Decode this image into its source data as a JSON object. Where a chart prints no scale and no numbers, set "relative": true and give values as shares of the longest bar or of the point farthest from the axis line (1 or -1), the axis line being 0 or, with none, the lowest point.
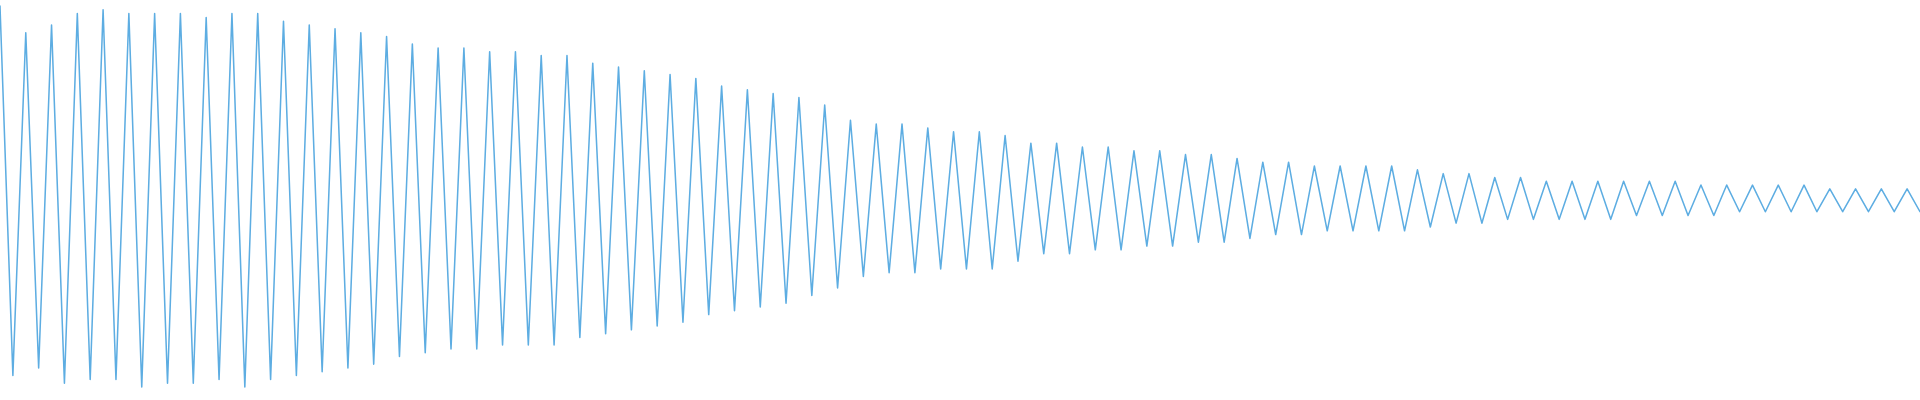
{
  "chart_data": {
    "type": "line",
    "relative": true,
    "color": "#5dade2",
    "categories": [
      null,
      null,
      null,
      null,
      null,
      null,
      null,
      null,
      null,
      null,
      null,
      null,
      null,
      null,
      null,
      null,
      null,
      null,
      null,
      null,
      null,
      null,
      null,
      null,
      null,
      null,
      null,
      null,
      null,
      null,
      null,
      null,
      null,
      null,
      null,
      null,
      null,
      null,
      null,
      null,
      null,
      null,
      null,
      null,
      null,
      null,
      null,
      null,
      null,
      null,
      null,
      null,
      null,
      null,
      null,
      null,
      null,
      null,
      null,
      null,
      null,
      null,
      null,
      null,
      null,
      null,
      null,
      null,
      null,
      null,
      null,
      null,
      null,
      null,
      null,
      null,
      null,
      null,
      null,
      null,
      null,
      null,
      null,
      null,
      null,
      null,
      null,
      null,
      null,
      null,
      null,
      null,
      null,
      null,
      null,
      null,
      null,
      null,
      null,
      null,
      null,
      null,
      null,
      null,
      null,
      null,
      null,
      null,
      null,
      null,
      null,
      null,
      null,
      null,
      null,
      null,
      null,
      null,
      null,
      null,
      null,
      null,
      null,
      null,
      null,
      null,
      null,
      null,
      null,
      null,
      null,
      null,
      null,
      null,
      null,
      null,
      null,
      null,
      null,
      null,
      null,
      null,
      null,
      null,
      null,
      null,
      null,
      null,
      null,
      null
    ],
    "values": [
      1.0,
      0.03,
      0.93,
      0.05,
      0.95,
      0.01,
      0.98,
      0.02,
      0.99,
      0.02,
      0.98,
      0.0,
      0.98,
      0.01,
      0.98,
      0.01,
      0.97,
      0.02,
      0.98,
      0.0,
      0.98,
      0.02,
      0.96,
      0.03,
      0.95,
      0.04,
      0.94,
      0.05,
      0.93,
      0.06,
      0.92,
      0.08,
      0.9,
      0.09,
      0.89,
      0.1,
      0.89,
      0.1,
      0.88,
      0.11,
      0.88,
      0.11,
      0.87,
      0.11,
      0.87,
      0.13,
      0.85,
      0.14,
      0.84,
      0.15,
      0.83,
      0.16,
      0.82,
      0.17,
      0.81,
      0.19,
      0.79,
      0.2,
      0.78,
      0.21,
      0.77,
      0.22,
      0.76,
      0.24,
      0.74,
      0.26,
      0.7,
      0.29,
      0.69,
      0.3,
      0.69,
      0.3,
      0.68,
      0.31,
      0.67,
      0.31,
      0.67,
      0.31,
      0.66,
      0.33,
      0.64,
      0.35,
      0.64,
      0.35,
      0.63,
      0.36,
      0.63,
      0.36,
      0.62,
      0.37,
      0.62,
      0.37,
      0.61,
      0.38,
      0.61,
      0.38,
      0.6,
      0.39,
      0.59,
      0.4,
      0.59,
      0.4,
      0.58,
      0.41,
      0.58,
      0.41,
      0.58,
      0.41,
      0.58,
      0.41,
      0.57,
      0.42,
      0.56,
      0.43,
      0.56,
      0.43,
      0.55,
      0.44,
      0.55,
      0.44,
      0.54,
      0.44,
      0.54,
      0.44,
      0.54,
      0.44,
      0.54,
      0.45,
      0.54,
      0.45,
      0.54,
      0.45,
      0.53,
      0.45,
      0.53,
      0.46,
      0.53,
      0.46,
      0.53,
      0.46,
      0.53,
      0.46,
      0.52,
      0.46,
      0.52,
      0.46,
      0.52,
      0.46,
      0.52,
      0.46
    ]
  }
}
